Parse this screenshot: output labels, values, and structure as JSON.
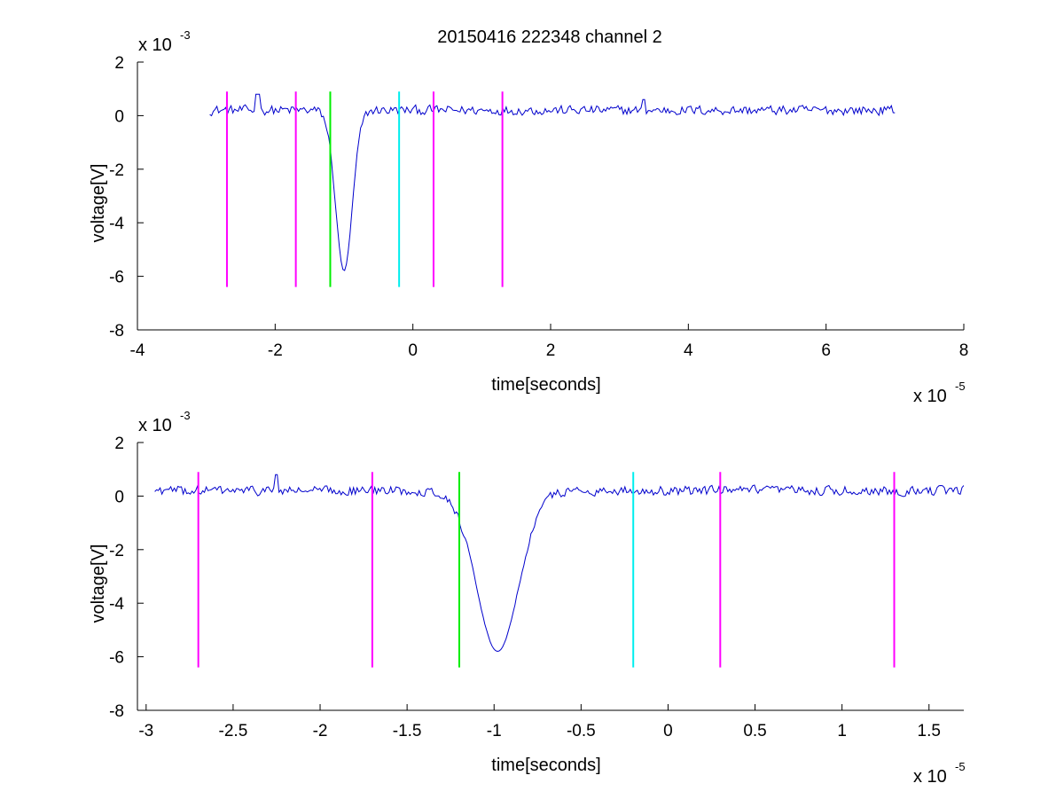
{
  "figure": {
    "title": "20150416 222348 channel 2",
    "colors": {
      "signal": "#0000cc",
      "magenta": "#ff00ff",
      "green": "#00ee00",
      "cyan": "#00eeee",
      "axis": "#000000"
    }
  },
  "chart_data": [
    {
      "type": "line",
      "title": "20150416 222348 channel 2",
      "xlabel": "time[seconds]",
      "ylabel": "voltage[V]",
      "x_multiplier": "x 10",
      "x_exponent": "-5",
      "y_multiplier": "x 10",
      "y_exponent": "-3",
      "xlim": [
        -4e-05,
        8e-05
      ],
      "ylim": [
        -0.008,
        0.002
      ],
      "xticks": [
        -4,
        -2,
        0,
        2,
        4,
        6,
        8
      ],
      "yticks": [
        -8,
        -6,
        -4,
        -2,
        0,
        2
      ],
      "grid": false,
      "series": [
        {
          "color": "#0000cc",
          "x_range": [
            -2.95e-05,
            7e-05
          ],
          "baseline": 0.0002,
          "noise_amplitude": 0.00025,
          "spike": {
            "x": -1e-05,
            "min": -0.0058
          },
          "secondary_peaks": [
            {
              "x": -2.25e-05,
              "value": 0.0008
            },
            {
              "x": 3.35e-05,
              "value": 0.0006
            }
          ]
        }
      ],
      "vertical_markers": [
        {
          "x": -2.7e-05,
          "color": "magenta",
          "y_top": 0.0009,
          "y_bottom": -0.0064
        },
        {
          "x": -1.7e-05,
          "color": "magenta",
          "y_top": 0.0009,
          "y_bottom": -0.0064
        },
        {
          "x": -1.2e-05,
          "color": "green",
          "y_top": 0.0009,
          "y_bottom": -0.0064
        },
        {
          "x": -2e-06,
          "color": "cyan",
          "y_top": 0.0009,
          "y_bottom": -0.0064
        },
        {
          "x": 3e-06,
          "color": "magenta",
          "y_top": 0.0009,
          "y_bottom": -0.0064
        },
        {
          "x": 1.3e-05,
          "color": "magenta",
          "y_top": 0.0009,
          "y_bottom": -0.0064
        }
      ]
    },
    {
      "type": "line",
      "title": "",
      "xlabel": "time[seconds]",
      "ylabel": "voltage[V]",
      "x_multiplier": "x 10",
      "x_exponent": "-5",
      "y_multiplier": "x 10",
      "y_exponent": "-3",
      "xlim": [
        -3.05e-05,
        1.7e-05
      ],
      "ylim": [
        -0.008,
        0.002
      ],
      "xticks": [
        -3,
        -2.5,
        -2,
        -1.5,
        -1,
        -0.5,
        0,
        0.5,
        1,
        1.5
      ],
      "yticks": [
        -8,
        -6,
        -4,
        -2,
        0,
        2
      ],
      "grid": false,
      "series": [
        {
          "color": "#0000cc",
          "x_range": [
            -2.95e-05,
            1.7e-05
          ],
          "baseline": 0.0002,
          "noise_amplitude": 0.00025,
          "spike": {
            "x": -9.8e-06,
            "min": -0.0058
          },
          "secondary_peaks": [
            {
              "x": -2.25e-05,
              "value": 0.0008
            }
          ]
        }
      ],
      "vertical_markers": [
        {
          "x": -2.7e-05,
          "color": "magenta",
          "y_top": 0.0009,
          "y_bottom": -0.0064
        },
        {
          "x": -1.7e-05,
          "color": "magenta",
          "y_top": 0.0009,
          "y_bottom": -0.0064
        },
        {
          "x": -1.2e-05,
          "color": "green",
          "y_top": 0.0009,
          "y_bottom": -0.0064
        },
        {
          "x": -2e-06,
          "color": "cyan",
          "y_top": 0.0009,
          "y_bottom": -0.0064
        },
        {
          "x": 3e-06,
          "color": "magenta",
          "y_top": 0.0009,
          "y_bottom": -0.0064
        },
        {
          "x": 1.3e-05,
          "color": "magenta",
          "y_top": 0.0009,
          "y_bottom": -0.0064
        }
      ]
    }
  ]
}
